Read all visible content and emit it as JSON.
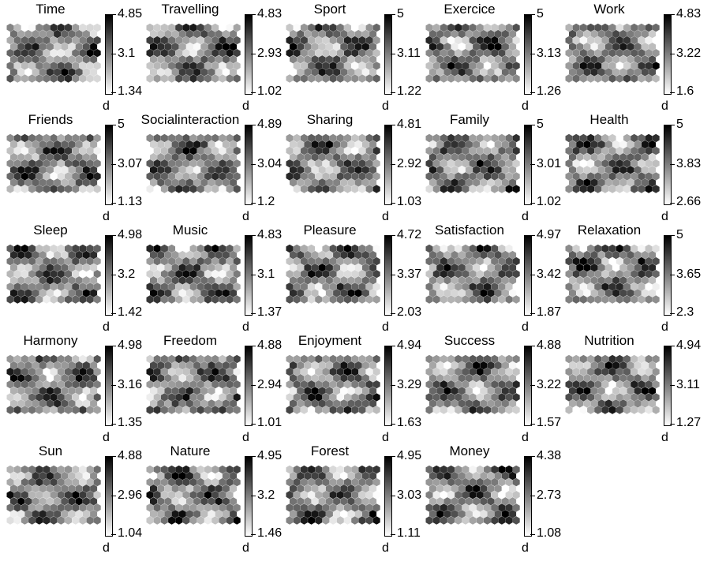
{
  "chart_data": {
    "type": "heatmap",
    "grid": {
      "cols": 13,
      "rows": 9,
      "cell_shape": "hexagon"
    },
    "colormap": "gray (white = low, black = high)",
    "panels": [
      {
        "title": "Time",
        "max": "4.85",
        "mid": "3.1",
        "min": "1.34",
        "unit": "d"
      },
      {
        "title": "Travelling",
        "max": "4.83",
        "mid": "2.93",
        "min": "1.02",
        "unit": "d"
      },
      {
        "title": "Sport",
        "max": "5",
        "mid": "3.11",
        "min": "1.22",
        "unit": "d"
      },
      {
        "title": "Exercice",
        "max": "5",
        "mid": "3.13",
        "min": "1.26",
        "unit": "d"
      },
      {
        "title": "Work",
        "max": "4.83",
        "mid": "3.22",
        "min": "1.6",
        "unit": "d"
      },
      {
        "title": "Friends",
        "max": "5",
        "mid": "3.07",
        "min": "1.13",
        "unit": "d"
      },
      {
        "title": "Socialinteraction",
        "max": "4.89",
        "mid": "3.04",
        "min": "1.2",
        "unit": "d"
      },
      {
        "title": "Sharing",
        "max": "4.81",
        "mid": "2.92",
        "min": "1.03",
        "unit": "d"
      },
      {
        "title": "Family",
        "max": "5",
        "mid": "3.01",
        "min": "1.02",
        "unit": "d"
      },
      {
        "title": "Health",
        "max": "5",
        "mid": "3.83",
        "min": "2.66",
        "unit": "d"
      },
      {
        "title": "Sleep",
        "max": "4.98",
        "mid": "3.2",
        "min": "1.42",
        "unit": "d"
      },
      {
        "title": "Music",
        "max": "4.83",
        "mid": "3.1",
        "min": "1.37",
        "unit": "d"
      },
      {
        "title": "Pleasure",
        "max": "4.72",
        "mid": "3.37",
        "min": "2.03",
        "unit": "d"
      },
      {
        "title": "Satisfaction",
        "max": "4.97",
        "mid": "3.42",
        "min": "1.87",
        "unit": "d"
      },
      {
        "title": "Relaxation",
        "max": "5",
        "mid": "3.65",
        "min": "2.3",
        "unit": "d"
      },
      {
        "title": "Harmony",
        "max": "4.98",
        "mid": "3.16",
        "min": "1.35",
        "unit": "d"
      },
      {
        "title": "Freedom",
        "max": "4.88",
        "mid": "2.94",
        "min": "1.01",
        "unit": "d"
      },
      {
        "title": "Enjoyment",
        "max": "4.94",
        "mid": "3.29",
        "min": "1.63",
        "unit": "d"
      },
      {
        "title": "Success",
        "max": "4.88",
        "mid": "3.22",
        "min": "1.57",
        "unit": "d"
      },
      {
        "title": "Nutrition",
        "max": "4.94",
        "mid": "3.11",
        "min": "1.27",
        "unit": "d"
      },
      {
        "title": "Sun",
        "max": "4.88",
        "mid": "2.96",
        "min": "1.04",
        "unit": "d"
      },
      {
        "title": "Nature",
        "max": "4.95",
        "mid": "3.2",
        "min": "1.46",
        "unit": "d"
      },
      {
        "title": "Forest",
        "max": "4.95",
        "mid": "3.03",
        "min": "1.11",
        "unit": "d"
      },
      {
        "title": "Money",
        "max": "4.38",
        "mid": "2.73",
        "min": "1.08",
        "unit": "d"
      }
    ]
  }
}
